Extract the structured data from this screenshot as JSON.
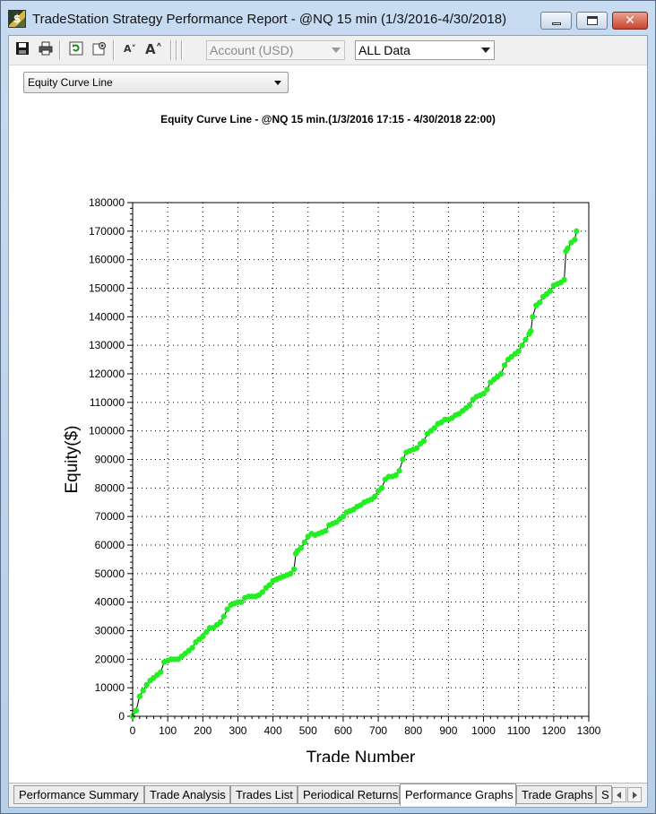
{
  "window": {
    "title": "TradeStation Strategy Performance Report - @NQ 15 min (1/3/2016-4/30/2018)",
    "icon": "tradestation-app-icon",
    "close_glyph": "✕"
  },
  "toolbar": {
    "buttons": [
      {
        "name": "save-icon",
        "glyph": "💾"
      },
      {
        "name": "print-icon",
        "glyph": "🖶"
      },
      {
        "name": "refresh-icon",
        "glyph": "⟳"
      },
      {
        "name": "settings-icon",
        "glyph": "⚙"
      },
      {
        "name": "decrease-font-icon",
        "glyph": "A˅"
      },
      {
        "name": "increase-font-icon",
        "glyph": "A˄"
      }
    ],
    "account_select": {
      "value": "Account (USD)",
      "enabled": false
    },
    "data_range_select": {
      "value": "ALL Data"
    }
  },
  "view_select": {
    "value": "Equity Curve Line"
  },
  "chart_data": {
    "type": "line",
    "title": "Equity Curve Line - @NQ 15 min.(1/3/2016 17:15 - 4/30/2018 22:00)",
    "xlabel": "Trade Number",
    "ylabel": "Equity($)",
    "xlim": [
      0,
      1300
    ],
    "ylim": [
      0,
      180000
    ],
    "xticks": [
      0,
      100,
      200,
      300,
      400,
      500,
      600,
      700,
      800,
      900,
      1000,
      1100,
      1200,
      1300
    ],
    "yticks": [
      0,
      10000,
      20000,
      30000,
      40000,
      50000,
      60000,
      70000,
      80000,
      90000,
      100000,
      110000,
      120000,
      130000,
      140000,
      150000,
      160000,
      170000,
      180000
    ],
    "grid": true,
    "line_color": "#000000",
    "marker_color": "#22ee22",
    "series": [
      {
        "x": [
          0,
          10,
          20,
          30,
          40,
          50,
          60,
          70,
          80,
          90,
          100,
          110,
          120,
          130,
          140,
          150,
          160,
          170,
          180,
          190,
          200,
          210,
          220,
          230,
          240,
          250,
          260,
          270,
          280,
          290,
          300,
          310,
          320,
          330,
          340,
          350,
          360,
          370,
          380,
          390,
          400,
          410,
          420,
          430,
          440,
          450,
          460,
          465,
          470,
          480,
          490,
          500,
          510,
          520,
          530,
          540,
          550,
          560,
          570,
          580,
          590,
          600,
          610,
          620,
          630,
          640,
          650,
          660,
          670,
          680,
          690,
          700,
          710,
          720,
          730,
          740,
          750,
          760,
          770,
          780,
          790,
          800,
          810,
          820,
          830,
          840,
          850,
          860,
          870,
          880,
          890,
          900,
          910,
          920,
          930,
          940,
          950,
          960,
          970,
          980,
          990,
          1000,
          1010,
          1020,
          1030,
          1040,
          1050,
          1060,
          1070,
          1080,
          1090,
          1100,
          1110,
          1120,
          1130,
          1135,
          1140,
          1150,
          1160,
          1170,
          1180,
          1190,
          1200,
          1210,
          1220,
          1230,
          1235,
          1240,
          1250,
          1260,
          1265
        ],
        "y": [
          0,
          2000,
          7000,
          9000,
          11000,
          12500,
          13500,
          14500,
          15500,
          19000,
          19500,
          20000,
          20000,
          20000,
          21000,
          22000,
          23000,
          24000,
          26000,
          27000,
          28000,
          29500,
          31000,
          31000,
          32000,
          33000,
          35000,
          37500,
          39000,
          39500,
          40000,
          40000,
          41500,
          42000,
          42000,
          42000,
          42500,
          43500,
          45000,
          46000,
          47500,
          48000,
          48500,
          49000,
          49500,
          50000,
          51500,
          57000,
          58000,
          59000,
          61000,
          63000,
          64000,
          63500,
          64000,
          64500,
          65000,
          67000,
          67500,
          68000,
          69000,
          70000,
          71500,
          72000,
          72500,
          73500,
          74000,
          75000,
          75500,
          76000,
          77000,
          79000,
          80000,
          83000,
          84000,
          84000,
          84500,
          86000,
          90000,
          92500,
          93000,
          93500,
          94000,
          95500,
          96500,
          99000,
          100000,
          101000,
          102500,
          103000,
          104000,
          104000,
          104500,
          105500,
          106000,
          107000,
          108000,
          109000,
          111000,
          112000,
          112500,
          113000,
          114500,
          117000,
          118000,
          119000,
          120000,
          123000,
          125000,
          126000,
          127000,
          128000,
          130000,
          132000,
          134000,
          135000,
          140000,
          144000,
          145000,
          147000,
          148000,
          149000,
          151000,
          151500,
          152000,
          153000,
          163000,
          164000,
          166000,
          167000,
          170000
        ]
      }
    ]
  },
  "tabs": [
    {
      "label": "Performance Summary",
      "active": false
    },
    {
      "label": "Trade Analysis",
      "active": false
    },
    {
      "label": "Trades List",
      "active": false
    },
    {
      "label": "Periodical Returns",
      "active": false
    },
    {
      "label": "Performance Graphs",
      "active": true
    },
    {
      "label": "Trade Graphs",
      "active": false
    },
    {
      "label": "S",
      "active": false
    }
  ]
}
